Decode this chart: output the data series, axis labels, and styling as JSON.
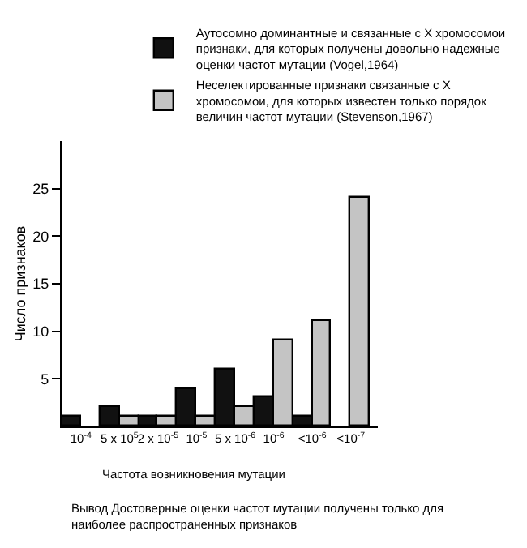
{
  "chart_data": {
    "type": "bar",
    "ylabel": "Число признаков",
    "categories": [
      "10$^{-4}$",
      "5 x 10$^{5}$",
      "2 x 10$^{-5}$",
      "10$^{-5}$",
      "5 x 10$^{-6}$",
      "10$^{-6}$",
      "<10$^{-6}$",
      "<10$^{-7}$"
    ],
    "series": [
      {
        "name": "Аутосомно доминантные и связанные с X хромосомои признаки, для которых получены довольно надежные оценки частот мутации (Vogel,1964)",
        "color": "#111111",
        "values": [
          1,
          2,
          1,
          4,
          6,
          3,
          1,
          null
        ]
      },
      {
        "name": "Неселектированные признаки связанные с X хромосомои, для которых известен только порядок величин частот мутации (Stevenson,1967)",
        "color": "#c4c4c4",
        "values": [
          null,
          1,
          1,
          1,
          2,
          9,
          11,
          24
        ]
      }
    ],
    "ylim": [
      0,
      30
    ],
    "yticks": [
      5,
      10,
      15,
      20,
      25
    ],
    "legend": "top",
    "annotations": [
      "Частота возникновения мутации",
      "Вывод Достоверные оценки частот мутации получены только для наиболее распространенных признаков"
    ]
  }
}
